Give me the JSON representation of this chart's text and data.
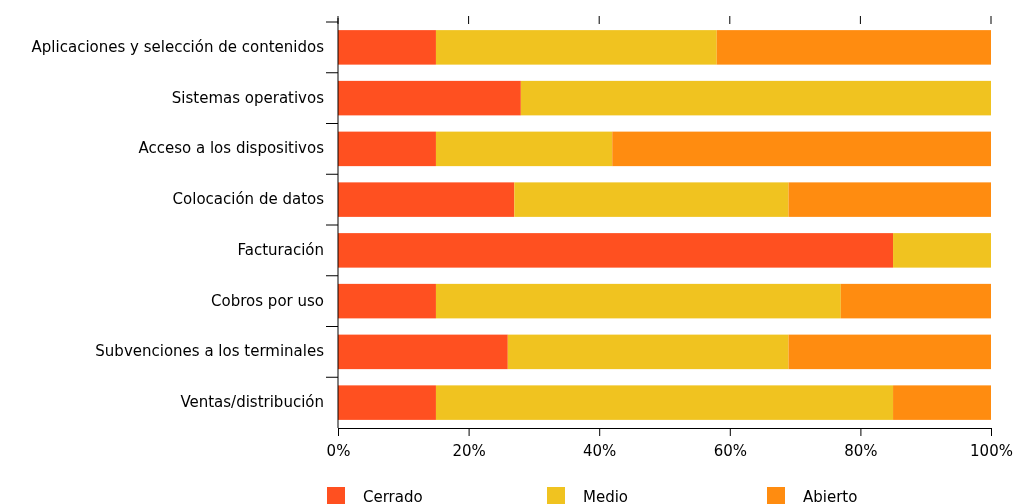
{
  "chart_data": {
    "type": "bar",
    "orientation": "horizontal",
    "stacked": true,
    "categories": [
      "Aplicaciones y selección de contenidos",
      "Sistemas operativos",
      "Acceso a los dispositivos",
      "Colocación de datos",
      "Facturación",
      "Cobros por uso",
      "Subvenciones a los terminales",
      "Ventas/distribución"
    ],
    "series": [
      {
        "name": "Cerrado",
        "color": "#ff5020",
        "values": [
          15,
          28,
          15,
          27,
          85,
          15,
          26,
          15
        ]
      },
      {
        "name": "Medio",
        "color": "#f0c320",
        "values": [
          43,
          72,
          27,
          42,
          15,
          62,
          43,
          70
        ]
      },
      {
        "name": "Abierto",
        "color": "#ff8c10",
        "values": [
          42,
          0,
          58,
          31,
          0,
          23,
          31,
          15
        ]
      }
    ],
    "xlim": [
      0,
      100
    ],
    "xticks": [
      {
        "value": 0,
        "label": "0%"
      },
      {
        "value": 20,
        "label": "20%"
      },
      {
        "value": 40,
        "label": "40%"
      },
      {
        "value": 60,
        "label": "60%"
      },
      {
        "value": 80,
        "label": "80%"
      },
      {
        "value": 100,
        "label": "100%"
      }
    ],
    "grid": false,
    "legend": "bottom"
  }
}
